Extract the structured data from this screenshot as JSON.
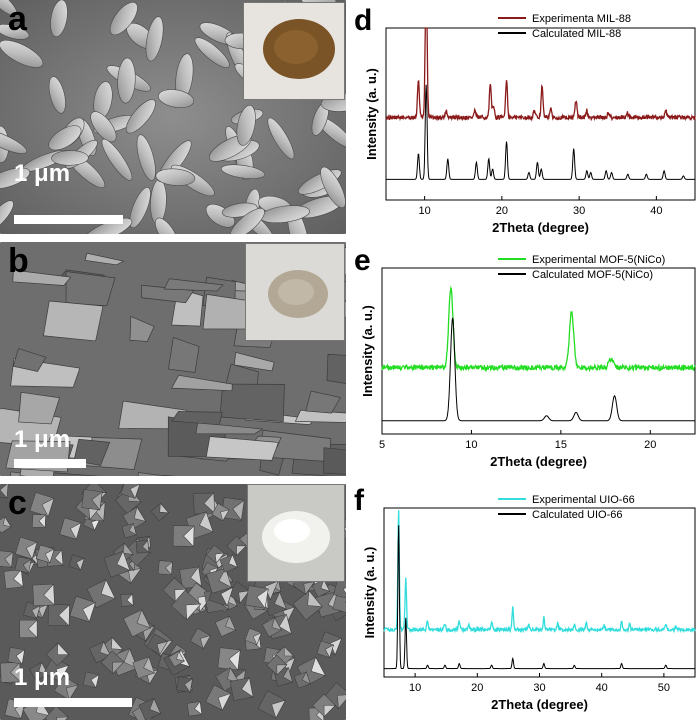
{
  "panels": {
    "a": {
      "letter": "a",
      "scale_label": "1 μm"
    },
    "b": {
      "letter": "b",
      "scale_label": "1 μm"
    },
    "c": {
      "letter": "c",
      "scale_label": "1 μm"
    }
  },
  "chart_data": [
    {
      "letter": "d",
      "type": "line",
      "xlabel": "2Theta (degree)",
      "ylabel": "Intensity (a. u.)",
      "xlim": [
        5,
        45
      ],
      "xticks": [
        10,
        20,
        30,
        40
      ],
      "series": [
        {
          "name": "Experimenta MIL-88",
          "color": "#8b1a1a",
          "baseline": 0.48,
          "noise": 0.012,
          "peaks": [
            [
              9.2,
              0.22
            ],
            [
              10.2,
              0.85
            ],
            [
              12.8,
              0.04
            ],
            [
              16.5,
              0.04
            ],
            [
              18.5,
              0.19
            ],
            [
              18.9,
              0.07
            ],
            [
              20.6,
              0.22
            ],
            [
              24.2,
              0.04
            ],
            [
              25.2,
              0.18
            ],
            [
              26.3,
              0.05
            ],
            [
              29.6,
              0.1
            ],
            [
              31.0,
              0.04
            ],
            [
              33.8,
              0.03
            ],
            [
              36.2,
              0.03
            ],
            [
              41.2,
              0.04
            ]
          ]
        },
        {
          "name": "Calculated MIL-88",
          "color": "#000000",
          "baseline": 0.12,
          "noise": 0,
          "peaks": [
            [
              9.2,
              0.15
            ],
            [
              10.2,
              0.55
            ],
            [
              13.0,
              0.12
            ],
            [
              16.7,
              0.1
            ],
            [
              18.3,
              0.12
            ],
            [
              18.8,
              0.06
            ],
            [
              20.6,
              0.22
            ],
            [
              23.5,
              0.04
            ],
            [
              24.6,
              0.1
            ],
            [
              25.1,
              0.06
            ],
            [
              29.3,
              0.18
            ],
            [
              31.0,
              0.05
            ],
            [
              31.5,
              0.04
            ],
            [
              33.5,
              0.05
            ],
            [
              34.2,
              0.04
            ],
            [
              36.3,
              0.03
            ],
            [
              38.7,
              0.03
            ],
            [
              41.0,
              0.05
            ],
            [
              43.5,
              0.02
            ]
          ]
        }
      ]
    },
    {
      "letter": "e",
      "type": "line",
      "xlabel": "2Theta (degree)",
      "ylabel": "Intensity (a. u.)",
      "xlim": [
        5,
        22.5
      ],
      "xticks": [
        5,
        10,
        15,
        20
      ],
      "series": [
        {
          "name": "Experimental MOF-5(NiCo)",
          "color": "#22dd22",
          "baseline": 0.4,
          "noise": 0.015,
          "peaks": [
            [
              8.85,
              0.48
            ],
            [
              15.6,
              0.34
            ],
            [
              17.8,
              0.05
            ]
          ]
        },
        {
          "name": "Calculated MOF-5(NiCo)",
          "color": "#000000",
          "baseline": 0.08,
          "noise": 0,
          "peaks": [
            [
              8.95,
              0.62
            ],
            [
              14.2,
              0.03
            ],
            [
              15.85,
              0.05
            ],
            [
              18.0,
              0.15
            ]
          ]
        }
      ]
    },
    {
      "letter": "f",
      "type": "line",
      "xlabel": "2Theta (degree)",
      "ylabel": "Intensity (a. u.)",
      "xlim": [
        5,
        55
      ],
      "xticks": [
        10,
        20,
        30,
        40,
        50
      ],
      "series": [
        {
          "name": "Experimental UIO-66",
          "color": "#33dddd",
          "baseline": 0.28,
          "noise": 0.01,
          "peaks": [
            [
              7.35,
              0.7
            ],
            [
              8.5,
              0.3
            ],
            [
              12.0,
              0.06
            ],
            [
              14.8,
              0.04
            ],
            [
              17.1,
              0.05
            ],
            [
              18.6,
              0.03
            ],
            [
              22.3,
              0.05
            ],
            [
              25.7,
              0.13
            ],
            [
              28.3,
              0.03
            ],
            [
              30.7,
              0.07
            ],
            [
              32.9,
              0.04
            ],
            [
              35.6,
              0.03
            ],
            [
              37.5,
              0.04
            ],
            [
              40.4,
              0.03
            ],
            [
              43.2,
              0.05
            ],
            [
              44.5,
              0.03
            ],
            [
              50.3,
              0.03
            ],
            [
              52.0,
              0.02
            ]
          ]
        },
        {
          "name": "Calculated UIO-66",
          "color": "#000000",
          "baseline": 0.05,
          "noise": 0,
          "peaks": [
            [
              7.35,
              0.85
            ],
            [
              8.5,
              0.3
            ],
            [
              12.0,
              0.02
            ],
            [
              14.8,
              0.02
            ],
            [
              17.1,
              0.03
            ],
            [
              22.3,
              0.02
            ],
            [
              25.7,
              0.06
            ],
            [
              30.7,
              0.03
            ],
            [
              35.6,
              0.02
            ],
            [
              43.2,
              0.03
            ],
            [
              50.3,
              0.02
            ]
          ]
        }
      ]
    }
  ]
}
